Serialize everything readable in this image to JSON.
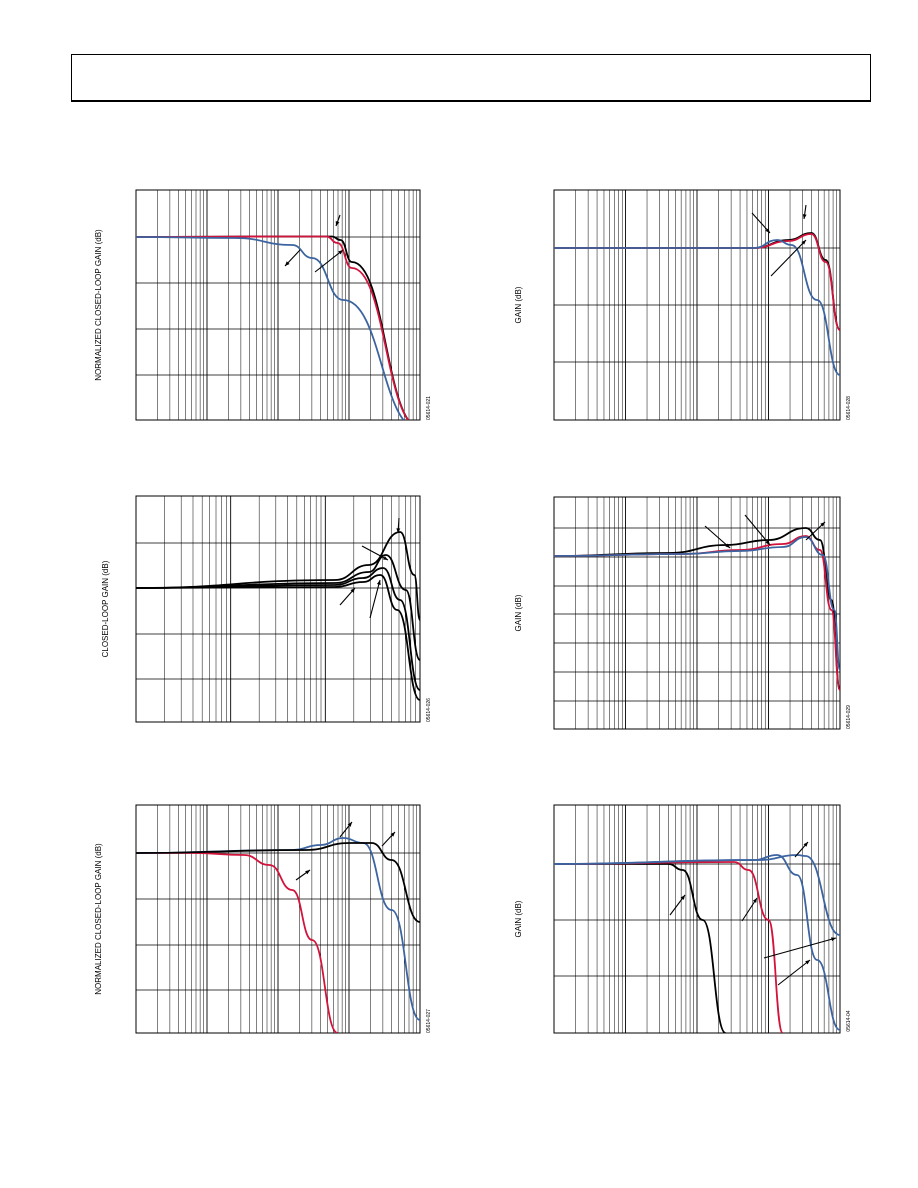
{
  "colors": {
    "black": "#000000",
    "red": "#d2143c",
    "blue": "#3c64a0"
  },
  "chart_data": [
    {
      "type": "line",
      "ylabel": "NORMALIZED CLOSED-LOOP GAIN (dB)",
      "figure_id": "05614-021",
      "x_scale": "log",
      "series": [
        {
          "color": "black",
          "points": [
            [
              0,
              237
            ],
            [
              0.5,
              236.5
            ],
            [
              0.69,
              236.5
            ],
            [
              0.72,
              240
            ],
            [
              0.76,
              262
            ],
            [
              1,
              428
            ]
          ]
        },
        {
          "color": "red",
          "points": [
            [
              0,
              237
            ],
            [
              0.5,
              236.5
            ],
            [
              0.67,
              236.5
            ],
            [
              0.71,
              243
            ],
            [
              0.76,
              268
            ],
            [
              1,
              428
            ]
          ]
        },
        {
          "color": "blue",
          "points": [
            [
              0,
              237
            ],
            [
              0.35,
              238
            ],
            [
              0.55,
              245
            ],
            [
              0.62,
              258
            ],
            [
              0.73,
              300
            ],
            [
              1,
              430
            ]
          ]
        }
      ],
      "arrows": [
        [
          [
            340,
            215
          ],
          [
            336,
            226
          ]
        ],
        [
          [
            300,
            250
          ],
          [
            285,
            266
          ]
        ],
        [
          [
            315,
            272
          ],
          [
            343,
            250
          ]
        ]
      ]
    },
    {
      "type": "line",
      "ylabel": "GAIN (dB)",
      "figure_id": "05614-028",
      "x_scale": "log",
      "series": [
        {
          "color": "black",
          "points": [
            [
              0,
              248
            ],
            [
              0.7,
              248
            ],
            [
              0.82,
              240
            ],
            [
              0.9,
              233
            ],
            [
              0.95,
              260
            ],
            [
              1,
              330
            ]
          ]
        },
        {
          "color": "red",
          "points": [
            [
              0,
              248
            ],
            [
              0.7,
              248
            ],
            [
              0.82,
              241
            ],
            [
              0.9,
              234
            ],
            [
              0.95,
              262
            ],
            [
              1,
              330
            ]
          ]
        },
        {
          "color": "blue",
          "points": [
            [
              0,
              248
            ],
            [
              0.7,
              248
            ],
            [
              0.78,
              240
            ],
            [
              0.83,
              245
            ],
            [
              0.92,
              300
            ],
            [
              1,
              375
            ]
          ]
        }
      ],
      "arrows": [
        [
          [
            752,
            213
          ],
          [
            770,
            233
          ]
        ],
        [
          [
            806,
            205
          ],
          [
            804,
            219
          ]
        ],
        [
          [
            771,
            276
          ],
          [
            806,
            240
          ]
        ]
      ]
    },
    {
      "type": "line",
      "ylabel": "CLOSED-LOOP GAIN (dB)",
      "figure_id": "05614-026",
      "x_scale": "log",
      "series": [
        {
          "color": "black",
          "points": [
            [
              0,
              588
            ],
            [
              0.7,
              580
            ],
            [
              0.82,
              565
            ],
            [
              0.93,
              532
            ],
            [
              0.98,
              575
            ],
            [
              1,
              620
            ]
          ]
        },
        {
          "color": "black",
          "points": [
            [
              0,
              588
            ],
            [
              0.7,
              583
            ],
            [
              0.82,
              572
            ],
            [
              0.88,
              555
            ],
            [
              0.95,
              590
            ],
            [
              1,
              660
            ]
          ]
        },
        {
          "color": "black",
          "points": [
            [
              0,
              588
            ],
            [
              0.7,
              585
            ],
            [
              0.8,
              578
            ],
            [
              0.87,
              568
            ],
            [
              0.93,
              600
            ],
            [
              1,
              690
            ]
          ]
        },
        {
          "color": "black",
          "points": [
            [
              0,
              588
            ],
            [
              0.7,
              587
            ],
            [
              0.8,
              582
            ],
            [
              0.86,
              575
            ],
            [
              0.92,
              610
            ],
            [
              1,
              700
            ]
          ]
        }
      ],
      "arrows": [
        [
          [
            362,
            546
          ],
          [
            388,
            560
          ]
        ],
        [
          [
            399,
            518
          ],
          [
            398,
            533
          ]
        ],
        [
          [
            340,
            605
          ],
          [
            355,
            588
          ]
        ],
        [
          [
            370,
            618
          ],
          [
            380,
            580
          ]
        ]
      ]
    },
    {
      "type": "line",
      "ylabel": "GAIN (dB)",
      "figure_id": "05614-029",
      "x_scale": "log",
      "series": [
        {
          "color": "black",
          "points": [
            [
              0,
              556
            ],
            [
              0.4,
              553
            ],
            [
              0.6,
              545
            ],
            [
              0.75,
              540
            ],
            [
              0.88,
              528
            ],
            [
              0.93,
              540
            ],
            [
              0.97,
              600
            ],
            [
              1,
              690
            ]
          ]
        },
        {
          "color": "red",
          "points": [
            [
              0,
              556
            ],
            [
              0.45,
              554
            ],
            [
              0.65,
              550
            ],
            [
              0.8,
              544
            ],
            [
              0.88,
              536
            ],
            [
              0.93,
              550
            ],
            [
              0.97,
              610
            ],
            [
              1,
              690
            ]
          ]
        },
        {
          "color": "blue",
          "points": [
            [
              0,
              556
            ],
            [
              0.45,
              554
            ],
            [
              0.65,
              551
            ],
            [
              0.8,
              547
            ],
            [
              0.88,
              537
            ],
            [
              0.94,
              555
            ],
            [
              0.98,
              610
            ],
            [
              1,
              670
            ]
          ]
        }
      ],
      "arrows": [
        [
          [
            705,
            526
          ],
          [
            730,
            548
          ]
        ],
        [
          [
            745,
            515
          ],
          [
            770,
            545
          ]
        ],
        [
          [
            806,
            540
          ],
          [
            825,
            522
          ]
        ]
      ]
    },
    {
      "type": "line",
      "ylabel": "NORMALIZED CLOSED-LOOP GAIN (dB)",
      "figure_id": "05614-027",
      "x_scale": "log",
      "series": [
        {
          "color": "red",
          "points": [
            [
              0,
              853
            ],
            [
              0.2,
              853
            ],
            [
              0.38,
              855
            ],
            [
              0.47,
              865
            ],
            [
              0.55,
              890
            ],
            [
              0.62,
              940
            ],
            [
              0.71,
              1033
            ]
          ]
        },
        {
          "color": "blue",
          "points": [
            [
              0,
              853
            ],
            [
              0.55,
              850
            ],
            [
              0.65,
              845
            ],
            [
              0.73,
              838
            ],
            [
              0.8,
              843
            ],
            [
              0.9,
              910
            ],
            [
              1,
              1020
            ]
          ]
        },
        {
          "color": "black",
          "points": [
            [
              0,
              853
            ],
            [
              0.6,
              850
            ],
            [
              0.75,
              843
            ],
            [
              0.83,
              843
            ],
            [
              0.9,
              860
            ],
            [
              1,
              922
            ]
          ]
        }
      ],
      "arrows": [
        [
          [
            340,
            837
          ],
          [
            352,
            822
          ]
        ],
        [
          [
            382,
            846
          ],
          [
            395,
            832
          ]
        ],
        [
          [
            296,
            880
          ],
          [
            310,
            870
          ]
        ]
      ]
    },
    {
      "type": "line",
      "ylabel": "GAIN (dB)",
      "figure_id": "05614-04",
      "x_scale": "log",
      "series": [
        {
          "color": "black",
          "points": [
            [
              0,
              864
            ],
            [
              0.4,
              864
            ],
            [
              0.45,
              870
            ],
            [
              0.52,
              920
            ],
            [
              0.6,
              1033
            ]
          ]
        },
        {
          "color": "red",
          "points": [
            [
              0,
              864
            ],
            [
              0.63,
              862
            ],
            [
              0.68,
              870
            ],
            [
              0.75,
              920
            ],
            [
              0.8,
              1033
            ]
          ]
        },
        {
          "color": "blue",
          "points": [
            [
              0,
              864
            ],
            [
              0.7,
              860
            ],
            [
              0.78,
              855
            ],
            [
              0.85,
              875
            ],
            [
              0.92,
              960
            ],
            [
              1,
              1030
            ]
          ]
        },
        {
          "color": "blue",
          "points": [
            [
              0,
              864
            ],
            [
              0.72,
              860
            ],
            [
              0.85,
              855
            ],
            [
              0.88,
              856
            ],
            [
              1,
              935
            ]
          ]
        }
      ],
      "arrows": [
        [
          [
            670,
            915
          ],
          [
            685,
            895
          ]
        ],
        [
          [
            742,
            921
          ],
          [
            757,
            898
          ]
        ],
        [
          [
            764,
            958
          ],
          [
            836,
            938
          ]
        ],
        [
          [
            778,
            985
          ],
          [
            810,
            960
          ]
        ],
        [
          [
            795,
            857
          ],
          [
            808,
            842
          ]
        ]
      ]
    }
  ]
}
